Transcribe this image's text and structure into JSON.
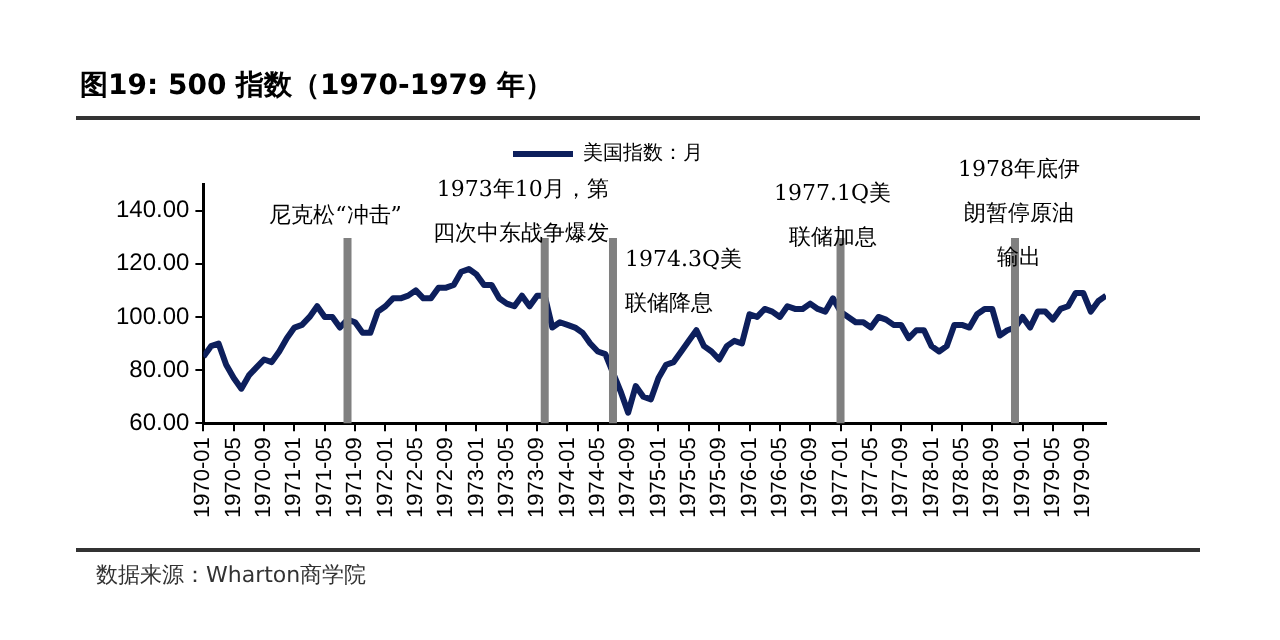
{
  "chart_data": {
    "type": "line",
    "title": "图19: 500 指数（1970-1979 年）",
    "x": [
      "1970-01",
      "1970-02",
      "1970-03",
      "1970-04",
      "1970-05",
      "1970-06",
      "1970-07",
      "1970-08",
      "1970-09",
      "1970-10",
      "1970-11",
      "1970-12",
      "1971-01",
      "1971-02",
      "1971-03",
      "1971-04",
      "1971-05",
      "1971-06",
      "1971-07",
      "1971-08",
      "1971-09",
      "1971-10",
      "1971-11",
      "1971-12",
      "1972-01",
      "1972-02",
      "1972-03",
      "1972-04",
      "1972-05",
      "1972-06",
      "1972-07",
      "1972-08",
      "1972-09",
      "1972-10",
      "1972-11",
      "1972-12",
      "1973-01",
      "1973-02",
      "1973-03",
      "1973-04",
      "1973-05",
      "1973-06",
      "1973-07",
      "1973-08",
      "1973-09",
      "1973-10",
      "1973-11",
      "1973-12",
      "1974-01",
      "1974-02",
      "1974-03",
      "1974-04",
      "1974-05",
      "1974-06",
      "1974-07",
      "1974-08",
      "1974-09",
      "1974-10",
      "1974-11",
      "1974-12",
      "1975-01",
      "1975-02",
      "1975-03",
      "1975-04",
      "1975-05",
      "1975-06",
      "1975-07",
      "1975-08",
      "1975-09",
      "1975-10",
      "1975-11",
      "1975-12",
      "1976-01",
      "1976-02",
      "1976-03",
      "1976-04",
      "1976-05",
      "1976-06",
      "1976-07",
      "1976-08",
      "1976-09",
      "1976-10",
      "1976-11",
      "1976-12",
      "1977-01",
      "1977-02",
      "1977-03",
      "1977-04",
      "1977-05",
      "1977-06",
      "1977-07",
      "1977-08",
      "1977-09",
      "1977-10",
      "1977-11",
      "1977-12",
      "1978-01",
      "1978-02",
      "1978-03",
      "1978-04",
      "1978-05",
      "1978-06",
      "1978-07",
      "1978-08",
      "1978-09",
      "1978-10",
      "1978-11",
      "1978-12",
      "1979-01",
      "1979-02",
      "1979-03",
      "1979-04",
      "1979-05",
      "1979-06",
      "1979-07",
      "1979-08",
      "1979-09",
      "1979-10",
      "1979-11",
      "1979-12"
    ],
    "series": [
      {
        "name": "美国指数：月",
        "color": "#0d1f5c",
        "values": [
          85,
          89,
          90,
          82,
          77,
          73,
          78,
          81,
          84,
          83,
          87,
          92,
          96,
          97,
          100,
          104,
          100,
          100,
          96,
          99,
          98,
          94,
          94,
          102,
          104,
          107,
          107,
          108,
          110,
          107,
          107,
          111,
          111,
          112,
          117,
          118,
          116,
          112,
          112,
          107,
          105,
          104,
          108,
          104,
          108,
          108,
          96,
          98,
          97,
          96,
          94,
          90,
          87,
          86,
          79,
          72,
          64,
          74,
          70,
          69,
          77,
          82,
          83,
          87,
          91,
          95,
          89,
          87,
          84,
          89,
          91,
          90,
          101,
          100,
          103,
          102,
          100,
          104,
          103,
          103,
          105,
          103,
          102,
          107,
          102,
          100,
          98,
          98,
          96,
          100,
          99,
          97,
          97,
          92,
          95,
          95,
          89,
          87,
          89,
          97,
          97,
          96,
          101,
          103,
          103,
          93,
          95,
          96,
          100,
          96,
          102,
          102,
          99,
          103,
          104,
          109,
          109,
          102,
          106,
          108
        ]
      }
    ],
    "xlim": [
      "1970-01",
      "1979-12"
    ],
    "xticks": [
      "1970-01",
      "1970-05",
      "1970-09",
      "1971-01",
      "1971-05",
      "1971-09",
      "1972-01",
      "1972-05",
      "1972-09",
      "1973-01",
      "1973-05",
      "1973-09",
      "1974-01",
      "1974-05",
      "1974-09",
      "1975-01",
      "1975-05",
      "1975-09",
      "1976-01",
      "1976-05",
      "1976-09",
      "1977-01",
      "1977-05",
      "1977-09",
      "1978-01",
      "1978-05",
      "1978-09",
      "1979-01",
      "1979-05",
      "1979-09"
    ],
    "ylim": [
      60,
      150
    ],
    "yticks": [
      {
        "value": 60,
        "label": "60.00"
      },
      {
        "value": 80,
        "label": "80.00"
      },
      {
        "value": 100,
        "label": "100.00"
      },
      {
        "value": 120,
        "label": "120.00"
      },
      {
        "value": 140,
        "label": "140.00"
      }
    ],
    "grid": false,
    "legend": "top",
    "marker": "none",
    "line_style": "solid",
    "ref_lines": [
      {
        "axis": "x",
        "value": "1971-08",
        "label": "尼克松“冲击”",
        "color": "#808080"
      },
      {
        "axis": "x",
        "value": "1973-10",
        "label": "1973年10月，第四次中东战争爆发",
        "color": "#808080"
      },
      {
        "axis": "x",
        "value": "1974-07",
        "label": "1974.3Q美联储降息",
        "color": "#808080"
      },
      {
        "axis": "x",
        "value": "1977-01",
        "label": "1977.1Q美联储加息",
        "color": "#808080"
      },
      {
        "axis": "x",
        "value": "1978-12",
        "label": "1978年底伊朗暂停原油输出",
        "color": "#808080"
      }
    ],
    "annotations": [
      "数据来源：Wharton商学院"
    ]
  }
}
